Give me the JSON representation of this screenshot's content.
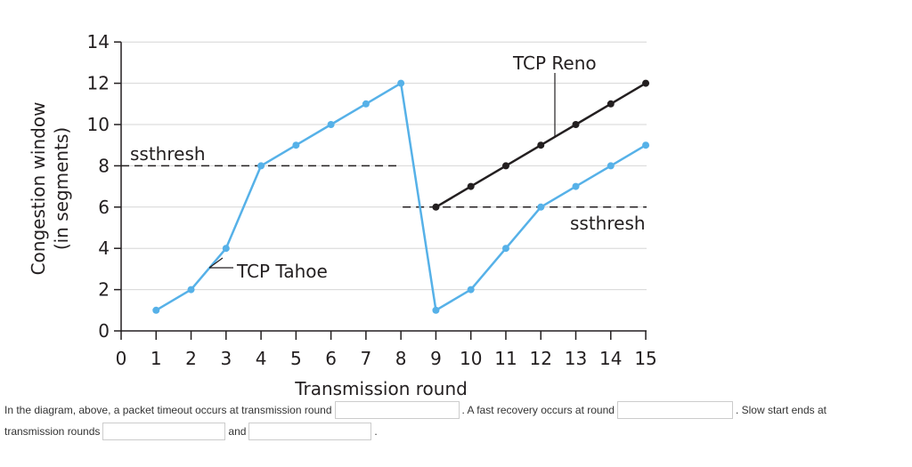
{
  "chart_data": {
    "type": "line",
    "xlabel": "Transmission round",
    "ylabel": [
      "Congestion window",
      "(in segments)"
    ],
    "x_ticks": [
      0,
      1,
      2,
      3,
      4,
      5,
      6,
      7,
      8,
      9,
      10,
      11,
      12,
      13,
      14,
      15
    ],
    "y_ticks": [
      0,
      2,
      4,
      6,
      8,
      10,
      12,
      14
    ],
    "xlim": [
      0,
      15
    ],
    "ylim": [
      0,
      14
    ],
    "grid": "horizontal",
    "series": [
      {
        "name": "TCP Tahoe",
        "color": "#56b1e8",
        "x": [
          1,
          2,
          3,
          4,
          5,
          6,
          7,
          8,
          9,
          10,
          11,
          12,
          13,
          14,
          15
        ],
        "y": [
          1,
          2,
          4,
          8,
          9,
          10,
          11,
          12,
          1,
          2,
          4,
          6,
          7,
          8,
          9
        ]
      },
      {
        "name": "TCP Reno",
        "color": "#231f20",
        "x": [
          9,
          10,
          11,
          12,
          13,
          14,
          15
        ],
        "y": [
          6,
          7,
          8,
          9,
          10,
          11,
          12
        ]
      }
    ],
    "thresholds": [
      {
        "label": "ssthresh",
        "y": 8,
        "x_range": [
          0,
          8
        ]
      },
      {
        "label": "ssthresh",
        "y": 6,
        "x_range": [
          8,
          15
        ]
      }
    ],
    "annotations": [
      {
        "text": "ssthresh",
        "target": "ssthresh at 8"
      },
      {
        "text": "TCP Tahoe",
        "target": "TCP Tahoe series"
      },
      {
        "text": "TCP Reno",
        "target": "TCP Reno series"
      },
      {
        "text": "ssthresh",
        "target": "ssthresh at 6"
      }
    ]
  },
  "question": {
    "part1": "In the diagram, above, a packet timeout occurs at transmission round",
    "part2": ". A fast recovery occurs at round",
    "part3": ". Slow start ends at",
    "part4": "transmission rounds",
    "part5": "and",
    "part6": ".",
    "answers": [
      "",
      "",
      "",
      ""
    ]
  }
}
